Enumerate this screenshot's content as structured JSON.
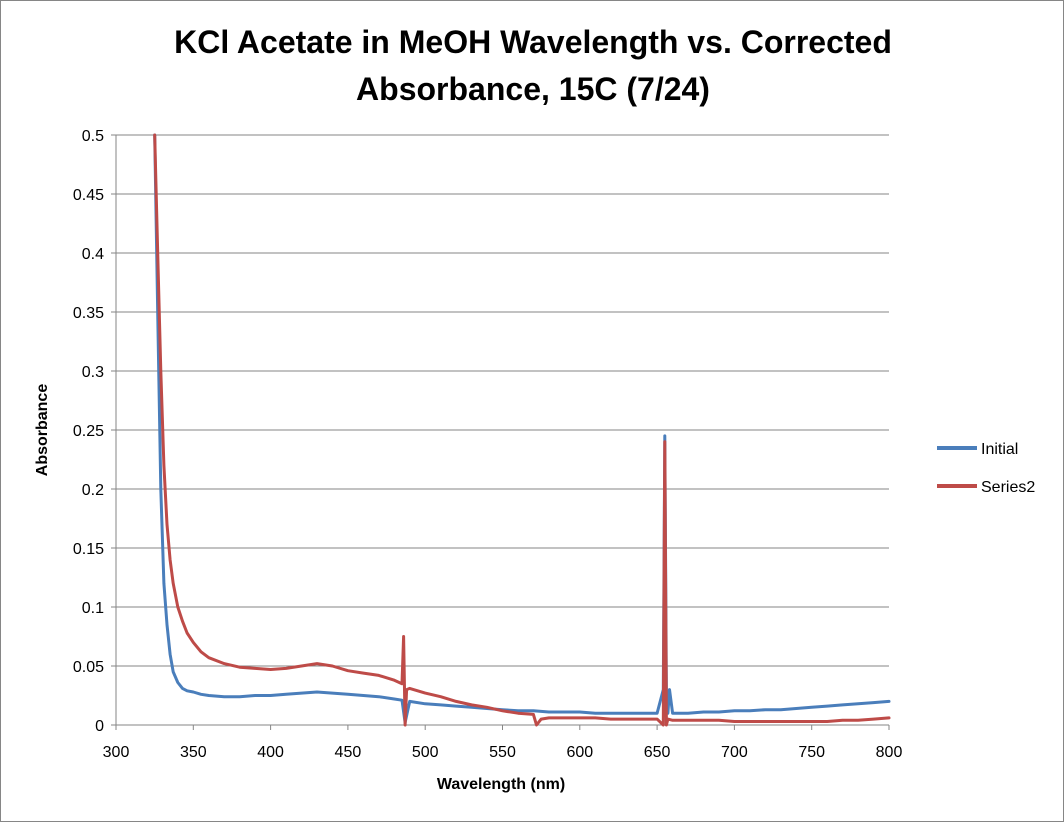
{
  "chart_data": {
    "type": "line",
    "title_lines": [
      "KCl Acetate in MeOH Wavelength vs. Corrected",
      "Absorbance, 15C (7/24)"
    ],
    "xlabel": "Wavelength (nm)",
    "ylabel": "Absorbance",
    "xlim": [
      300,
      800
    ],
    "ylim": [
      0,
      0.5
    ],
    "xticks": [
      300,
      350,
      400,
      450,
      500,
      550,
      600,
      650,
      700,
      750,
      800
    ],
    "yticks": [
      0,
      0.05,
      0.1,
      0.15,
      0.2,
      0.25,
      0.3,
      0.35,
      0.4,
      0.45,
      0.5
    ],
    "ytick_labels": [
      "0",
      "0.05",
      "0.1",
      "0.15",
      "0.2",
      "0.25",
      "0.3",
      "0.35",
      "0.4",
      "0.45",
      "0.5"
    ],
    "grid": "horizontal",
    "legend_position": "right",
    "series": [
      {
        "name": "Initial",
        "color": "#4a7ebb",
        "x": [
          325,
          327,
          329,
          331,
          333,
          335,
          337,
          340,
          343,
          346,
          350,
          355,
          360,
          370,
          380,
          390,
          400,
          410,
          420,
          430,
          440,
          450,
          460,
          470,
          480,
          485,
          487,
          490,
          500,
          510,
          520,
          530,
          540,
          550,
          560,
          570,
          580,
          590,
          600,
          610,
          620,
          630,
          640,
          650,
          654,
          655,
          656,
          657,
          658,
          660,
          670,
          680,
          690,
          700,
          710,
          720,
          730,
          740,
          750,
          760,
          770,
          780,
          790,
          800
        ],
        "y": [
          0.5,
          0.35,
          0.2,
          0.12,
          0.085,
          0.06,
          0.045,
          0.036,
          0.031,
          0.029,
          0.028,
          0.026,
          0.025,
          0.024,
          0.024,
          0.025,
          0.025,
          0.026,
          0.027,
          0.028,
          0.027,
          0.026,
          0.025,
          0.024,
          0.022,
          0.021,
          0.002,
          0.02,
          0.018,
          0.017,
          0.016,
          0.015,
          0.014,
          0.013,
          0.012,
          0.012,
          0.011,
          0.011,
          0.011,
          0.01,
          0.01,
          0.01,
          0.01,
          0.01,
          0.03,
          0.245,
          0.03,
          0.01,
          0.03,
          0.01,
          0.01,
          0.011,
          0.011,
          0.012,
          0.012,
          0.013,
          0.013,
          0.014,
          0.015,
          0.016,
          0.017,
          0.018,
          0.019,
          0.02
        ]
      },
      {
        "name": "Series2",
        "color": "#be4b48",
        "x": [
          325,
          327,
          329,
          331,
          333,
          335,
          337,
          340,
          343,
          346,
          350,
          355,
          360,
          370,
          380,
          390,
          400,
          410,
          420,
          430,
          440,
          450,
          460,
          470,
          480,
          485,
          486,
          487,
          488,
          490,
          500,
          510,
          520,
          530,
          540,
          550,
          560,
          570,
          572,
          575,
          580,
          590,
          600,
          610,
          620,
          630,
          640,
          650,
          654,
          655,
          656,
          657,
          660,
          670,
          680,
          690,
          700,
          710,
          720,
          730,
          740,
          750,
          760,
          770,
          780,
          790,
          800
        ],
        "y": [
          0.5,
          0.4,
          0.3,
          0.22,
          0.17,
          0.14,
          0.12,
          0.1,
          0.088,
          0.078,
          0.07,
          0.062,
          0.057,
          0.052,
          0.049,
          0.048,
          0.047,
          0.048,
          0.05,
          0.052,
          0.05,
          0.046,
          0.044,
          0.042,
          0.038,
          0.035,
          0.075,
          0.0,
          0.03,
          0.031,
          0.027,
          0.024,
          0.02,
          0.017,
          0.015,
          0.012,
          0.01,
          0.009,
          0.0,
          0.005,
          0.006,
          0.006,
          0.006,
          0.006,
          0.005,
          0.005,
          0.005,
          0.005,
          0.0,
          0.24,
          0.0,
          0.005,
          0.004,
          0.004,
          0.004,
          0.004,
          0.003,
          0.003,
          0.003,
          0.003,
          0.003,
          0.003,
          0.003,
          0.004,
          0.004,
          0.005,
          0.006
        ]
      }
    ]
  }
}
